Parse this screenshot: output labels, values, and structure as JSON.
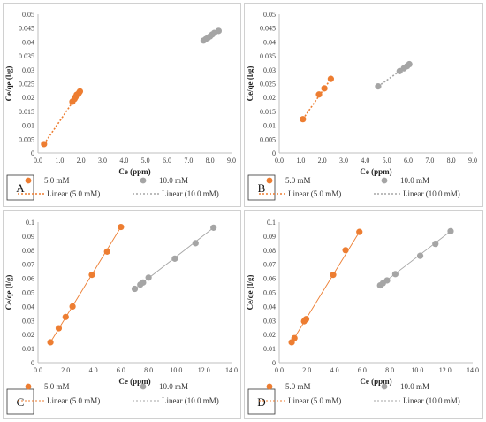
{
  "chart_data": [
    {
      "type": "scatter",
      "panel_label": "A",
      "xlabel": "Ce (ppm)",
      "ylabel": "Ce/qe (l/g)",
      "xlim": [
        0,
        9
      ],
      "ylim": [
        0,
        0.05
      ],
      "xticks": [
        "0.0",
        "1.0",
        "2.0",
        "3.0",
        "4.0",
        "5.0",
        "6.0",
        "7.0",
        "8.0",
        "9.0"
      ],
      "yticks": [
        "0",
        "0.005",
        "0.01",
        "0.015",
        "0.02",
        "0.025",
        "0.03",
        "0.035",
        "0.04",
        "0.045",
        "0.05"
      ],
      "series": [
        {
          "name": "5.0 mM",
          "color": "#ED7D31",
          "x": [
            0.28,
            1.6,
            1.7,
            1.75,
            1.8,
            1.9,
            1.95
          ],
          "y": [
            0.0032,
            0.0185,
            0.0195,
            0.0202,
            0.021,
            0.0216,
            0.0222
          ]
        },
        {
          "name": "10.0 mM",
          "color": "#A5A5A5",
          "x": [
            7.7,
            7.8,
            7.9,
            8.0,
            8.1,
            8.2,
            8.4
          ],
          "y": [
            0.0405,
            0.041,
            0.0415,
            0.042,
            0.0427,
            0.0433,
            0.044
          ]
        }
      ],
      "trendlines": [
        {
          "name": "Linear (5.0 mM)",
          "color": "#ED7D31",
          "x": [
            0.28,
            1.95
          ],
          "y": [
            0.0032,
            0.0222
          ]
        },
        {
          "name": "Linear (10.0 mM)",
          "color": "#A5A5A5",
          "x": [
            7.7,
            8.4
          ],
          "y": [
            0.0405,
            0.044
          ]
        }
      ],
      "legend": [
        "5.0 mM",
        "10.0 mM",
        "Linear (5.0 mM)",
        "Linear (10.0 mM)"
      ],
      "legend_position": "bottom",
      "grid": false
    },
    {
      "type": "scatter",
      "panel_label": "B",
      "xlabel": "Ce (ppm)",
      "ylabel": "Ce/qe (l/g)",
      "xlim": [
        0,
        9
      ],
      "ylim": [
        0,
        0.05
      ],
      "xticks": [
        "0.0",
        "1.0",
        "2.0",
        "3.0",
        "4.0",
        "5.0",
        "6.0",
        "7.0",
        "8.0",
        "9.0"
      ],
      "yticks": [
        "0",
        "0.005",
        "0.01",
        "0.015",
        "0.02",
        "0.025",
        "0.03",
        "0.035",
        "0.04",
        "0.045",
        "0.05"
      ],
      "series": [
        {
          "name": "5.0 mM",
          "color": "#ED7D31",
          "x": [
            1.1,
            1.85,
            2.1,
            2.4
          ],
          "y": [
            0.0122,
            0.0211,
            0.0233,
            0.0267
          ]
        },
        {
          "name": "10.0 mM",
          "color": "#A5A5A5",
          "x": [
            4.6,
            5.6,
            5.8,
            5.95,
            6.05
          ],
          "y": [
            0.024,
            0.0295,
            0.0305,
            0.0313,
            0.032
          ]
        }
      ],
      "trendlines": [
        {
          "name": "Linear (5.0 mM)",
          "color": "#ED7D31",
          "x": [
            1.1,
            2.4
          ],
          "y": [
            0.0122,
            0.0267
          ]
        },
        {
          "name": "Linear (10.0 mM)",
          "color": "#A5A5A5",
          "x": [
            4.6,
            6.05
          ],
          "y": [
            0.024,
            0.032
          ]
        }
      ],
      "legend": [
        "5.0 mM",
        "10.0 mM",
        "Linear (5.0 mM)",
        "Linear (10.0 mM)"
      ],
      "legend_position": "bottom",
      "grid": false
    },
    {
      "type": "scatter",
      "panel_label": "C",
      "xlabel": "Ce (ppm)",
      "ylabel": "Ce/qe (l/g)",
      "xlim": [
        0,
        14
      ],
      "ylim": [
        0,
        0.1
      ],
      "xticks": [
        "0.0",
        "2.0",
        "4.0",
        "6.0",
        "8.0",
        "10.0",
        "12.0",
        "14.0"
      ],
      "yticks": [
        "0",
        "0.01",
        "0.02",
        "0.03",
        "0.04",
        "0.05",
        "0.06",
        "0.07",
        "0.08",
        "0.09",
        "0.1"
      ],
      "series": [
        {
          "name": "5.0 mM",
          "color": "#ED7D31",
          "x": [
            0.9,
            1.5,
            2.0,
            2.5,
            3.9,
            5.0,
            6.0
          ],
          "y": [
            0.0145,
            0.0245,
            0.0325,
            0.04,
            0.0625,
            0.079,
            0.0965
          ]
        },
        {
          "name": "10.0 mM",
          "color": "#A5A5A5",
          "x": [
            7.0,
            7.4,
            7.6,
            8.0,
            9.9,
            11.4,
            12.7
          ],
          "y": [
            0.0525,
            0.0555,
            0.057,
            0.0605,
            0.074,
            0.085,
            0.096
          ]
        }
      ],
      "trendlines": [
        {
          "name": "Linear (5.0 mM)",
          "color": "#ED7D31",
          "x": [
            0.9,
            6.0
          ],
          "y": [
            0.0145,
            0.0965
          ]
        },
        {
          "name": "Linear (10.0 mM)",
          "color": "#A5A5A5",
          "x": [
            7.0,
            12.7
          ],
          "y": [
            0.0525,
            0.096
          ]
        }
      ],
      "legend": [
        "5.0 mM",
        "10.0 mM",
        "Linear (5.0 mM)",
        "Linear (10.0 mM)"
      ],
      "legend_position": "bottom",
      "grid": false
    },
    {
      "type": "scatter",
      "panel_label": "D",
      "xlabel": "Ce (ppm)",
      "ylabel": "Ce/qe (l/g)",
      "xlim": [
        0,
        14
      ],
      "ylim": [
        0,
        0.1
      ],
      "xticks": [
        "0.0",
        "2.0",
        "4.0",
        "6.0",
        "8.0",
        "10.0",
        "12.0",
        "14.0"
      ],
      "yticks": [
        "0",
        "0.01",
        "0.02",
        "0.03",
        "0.04",
        "0.05",
        "0.06",
        "0.07",
        "0.08",
        "0.09",
        "0.1"
      ],
      "series": [
        {
          "name": "5.0 mM",
          "color": "#ED7D31",
          "x": [
            0.9,
            1.1,
            1.8,
            1.95,
            3.9,
            4.8,
            5.8
          ],
          "y": [
            0.0145,
            0.0175,
            0.0295,
            0.031,
            0.0625,
            0.08,
            0.093
          ]
        },
        {
          "name": "10.0 mM",
          "color": "#A5A5A5",
          "x": [
            7.3,
            7.5,
            7.8,
            8.4,
            10.2,
            11.3,
            12.4
          ],
          "y": [
            0.055,
            0.0565,
            0.0585,
            0.063,
            0.076,
            0.0845,
            0.0935
          ]
        }
      ],
      "trendlines": [
        {
          "name": "Linear (5.0 mM)",
          "color": "#ED7D31",
          "x": [
            0.9,
            5.8
          ],
          "y": [
            0.0145,
            0.093
          ]
        },
        {
          "name": "Linear (10.0 mM)",
          "color": "#A5A5A5",
          "x": [
            7.3,
            12.4
          ],
          "y": [
            0.055,
            0.0935
          ]
        }
      ],
      "legend": [
        "5.0 mM",
        "10.0 mM",
        "Linear (5.0 mM)",
        "Linear (10.0 mM)"
      ],
      "legend_position": "bottom",
      "grid": false
    }
  ]
}
